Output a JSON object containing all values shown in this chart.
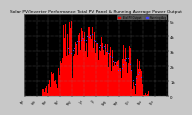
{
  "title": "Solar PV/Inverter Performance Total PV Panel & Running Average Power Output",
  "title_fontsize": 3.2,
  "bg_color": "#c8c8c8",
  "plot_bg_color": "#000000",
  "ylim": [
    0,
    5500
  ],
  "yticks": [
    0,
    1000,
    2000,
    3000,
    4000,
    5000
  ],
  "ytick_labels": [
    "0",
    "1k",
    "2k",
    "3k",
    "4k",
    "5k"
  ],
  "bar_color": "#ff0000",
  "avg_color": "#4444ff",
  "grid_color": "#555555",
  "num_bars": 350,
  "legend_pv_label": "Total PV Output",
  "legend_avg_label": "Running Avg",
  "legend_pv_color": "#ff0000",
  "legend_avg_color": "#4444ff",
  "tick_fontsize": 2.8,
  "ylabel_right": true
}
